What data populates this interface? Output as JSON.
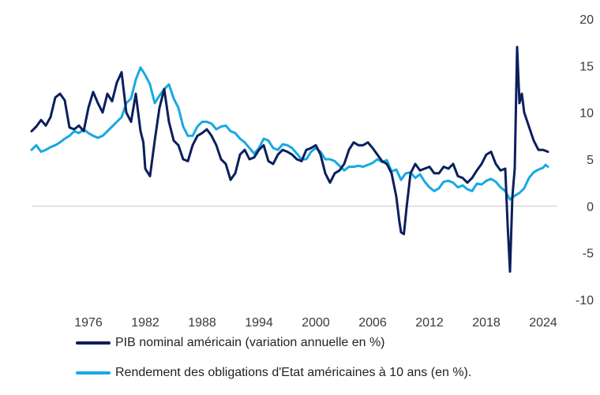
{
  "chart_data": {
    "type": "line",
    "xlim": [
      1970,
      2025.5
    ],
    "ylim": [
      -10,
      20
    ],
    "x_ticks": [
      1976,
      1982,
      1988,
      1994,
      2000,
      2006,
      2012,
      2018,
      2024
    ],
    "y_ticks": [
      20,
      15,
      10,
      5,
      0,
      -5,
      -10
    ],
    "zero_line": true,
    "series": [
      {
        "name": "PIB nominal américain (variation annuelle en %)",
        "color": "#0b1f5c",
        "points": [
          [
            1970.0,
            8.0
          ],
          [
            1970.5,
            8.5
          ],
          [
            1971.0,
            9.2
          ],
          [
            1971.5,
            8.6
          ],
          [
            1972.0,
            9.5
          ],
          [
            1972.5,
            11.6
          ],
          [
            1973.0,
            12.0
          ],
          [
            1973.5,
            11.3
          ],
          [
            1974.0,
            8.4
          ],
          [
            1974.5,
            8.2
          ],
          [
            1975.0,
            8.6
          ],
          [
            1975.5,
            8.0
          ],
          [
            1976.0,
            10.5
          ],
          [
            1976.5,
            12.2
          ],
          [
            1977.0,
            11.0
          ],
          [
            1977.5,
            10.0
          ],
          [
            1978.0,
            12.0
          ],
          [
            1978.5,
            11.2
          ],
          [
            1979.0,
            13.2
          ],
          [
            1979.5,
            14.3
          ],
          [
            1980.0,
            10.0
          ],
          [
            1980.5,
            9.0
          ],
          [
            1981.0,
            12.0
          ],
          [
            1981.5,
            8.0
          ],
          [
            1981.8,
            6.8
          ],
          [
            1982.0,
            4.0
          ],
          [
            1982.5,
            3.2
          ],
          [
            1983.0,
            7.0
          ],
          [
            1983.5,
            10.5
          ],
          [
            1984.0,
            12.5
          ],
          [
            1984.5,
            9.0
          ],
          [
            1985.0,
            7.0
          ],
          [
            1985.5,
            6.5
          ],
          [
            1986.0,
            5.0
          ],
          [
            1986.5,
            4.8
          ],
          [
            1987.0,
            6.5
          ],
          [
            1987.5,
            7.5
          ],
          [
            1988.0,
            7.8
          ],
          [
            1988.5,
            8.2
          ],
          [
            1989.0,
            7.5
          ],
          [
            1989.5,
            6.5
          ],
          [
            1990.0,
            5.0
          ],
          [
            1990.5,
            4.5
          ],
          [
            1991.0,
            2.8
          ],
          [
            1991.5,
            3.5
          ],
          [
            1992.0,
            5.5
          ],
          [
            1992.5,
            6.0
          ],
          [
            1993.0,
            5.0
          ],
          [
            1993.5,
            5.2
          ],
          [
            1994.0,
            6.0
          ],
          [
            1994.5,
            6.5
          ],
          [
            1995.0,
            4.8
          ],
          [
            1995.5,
            4.5
          ],
          [
            1996.0,
            5.5
          ],
          [
            1996.5,
            6.0
          ],
          [
            1997.0,
            5.8
          ],
          [
            1997.5,
            5.5
          ],
          [
            1998.0,
            5.0
          ],
          [
            1998.5,
            4.8
          ],
          [
            1999.0,
            6.0
          ],
          [
            1999.5,
            6.2
          ],
          [
            2000.0,
            6.5
          ],
          [
            2000.5,
            5.5
          ],
          [
            2001.0,
            3.5
          ],
          [
            2001.5,
            2.5
          ],
          [
            2002.0,
            3.5
          ],
          [
            2002.5,
            3.8
          ],
          [
            2003.0,
            4.5
          ],
          [
            2003.5,
            6.0
          ],
          [
            2004.0,
            6.8
          ],
          [
            2004.5,
            6.5
          ],
          [
            2005.0,
            6.5
          ],
          [
            2005.5,
            6.8
          ],
          [
            2006.0,
            6.2
          ],
          [
            2006.5,
            5.5
          ],
          [
            2007.0,
            4.8
          ],
          [
            2007.5,
            4.5
          ],
          [
            2008.0,
            3.5
          ],
          [
            2008.5,
            1.0
          ],
          [
            2008.8,
            -1.5
          ],
          [
            2009.0,
            -2.8
          ],
          [
            2009.3,
            -3.0
          ],
          [
            2009.6,
            0.0
          ],
          [
            2010.0,
            3.5
          ],
          [
            2010.5,
            4.5
          ],
          [
            2011.0,
            3.8
          ],
          [
            2011.5,
            4.0
          ],
          [
            2012.0,
            4.2
          ],
          [
            2012.5,
            3.5
          ],
          [
            2013.0,
            3.5
          ],
          [
            2013.5,
            4.2
          ],
          [
            2014.0,
            4.0
          ],
          [
            2014.5,
            4.5
          ],
          [
            2015.0,
            3.2
          ],
          [
            2015.5,
            3.0
          ],
          [
            2016.0,
            2.5
          ],
          [
            2016.5,
            3.0
          ],
          [
            2017.0,
            3.8
          ],
          [
            2017.5,
            4.5
          ],
          [
            2018.0,
            5.5
          ],
          [
            2018.5,
            5.8
          ],
          [
            2019.0,
            4.5
          ],
          [
            2019.5,
            3.8
          ],
          [
            2020.0,
            4.0
          ],
          [
            2020.25,
            -2.0
          ],
          [
            2020.5,
            -7.0
          ],
          [
            2020.75,
            1.0
          ],
          [
            2021.0,
            4.0
          ],
          [
            2021.25,
            17.0
          ],
          [
            2021.5,
            11.0
          ],
          [
            2021.75,
            12.0
          ],
          [
            2022.0,
            10.0
          ],
          [
            2022.5,
            8.5
          ],
          [
            2023.0,
            7.0
          ],
          [
            2023.5,
            6.0
          ],
          [
            2024.0,
            6.0
          ],
          [
            2024.5,
            5.8
          ]
        ]
      },
      {
        "name": "Rendement des obligations d'Etat américaines à 10 ans (en %).",
        "color": "#16a9e4",
        "points": [
          [
            1970.0,
            6.0
          ],
          [
            1970.5,
            6.5
          ],
          [
            1971.0,
            5.8
          ],
          [
            1971.5,
            6.0
          ],
          [
            1972.0,
            6.3
          ],
          [
            1972.5,
            6.5
          ],
          [
            1973.0,
            6.8
          ],
          [
            1973.5,
            7.2
          ],
          [
            1974.0,
            7.5
          ],
          [
            1974.5,
            8.0
          ],
          [
            1975.0,
            7.8
          ],
          [
            1975.5,
            8.2
          ],
          [
            1976.0,
            7.8
          ],
          [
            1976.5,
            7.5
          ],
          [
            1977.0,
            7.3
          ],
          [
            1977.5,
            7.5
          ],
          [
            1978.0,
            8.0
          ],
          [
            1978.5,
            8.5
          ],
          [
            1979.0,
            9.0
          ],
          [
            1979.5,
            9.5
          ],
          [
            1980.0,
            11.0
          ],
          [
            1980.5,
            11.5
          ],
          [
            1981.0,
            13.5
          ],
          [
            1981.5,
            14.8
          ],
          [
            1982.0,
            14.0
          ],
          [
            1982.5,
            13.0
          ],
          [
            1983.0,
            11.0
          ],
          [
            1983.5,
            11.8
          ],
          [
            1984.0,
            12.5
          ],
          [
            1984.5,
            13.0
          ],
          [
            1985.0,
            11.5
          ],
          [
            1985.5,
            10.5
          ],
          [
            1986.0,
            8.5
          ],
          [
            1986.5,
            7.5
          ],
          [
            1987.0,
            7.5
          ],
          [
            1987.5,
            8.5
          ],
          [
            1988.0,
            9.0
          ],
          [
            1988.5,
            9.0
          ],
          [
            1989.0,
            8.8
          ],
          [
            1989.5,
            8.2
          ],
          [
            1990.0,
            8.5
          ],
          [
            1990.5,
            8.6
          ],
          [
            1991.0,
            8.0
          ],
          [
            1991.5,
            7.8
          ],
          [
            1992.0,
            7.2
          ],
          [
            1992.5,
            6.8
          ],
          [
            1993.0,
            6.2
          ],
          [
            1993.5,
            5.6
          ],
          [
            1994.0,
            6.2
          ],
          [
            1994.5,
            7.2
          ],
          [
            1995.0,
            7.0
          ],
          [
            1995.5,
            6.2
          ],
          [
            1996.0,
            6.0
          ],
          [
            1996.5,
            6.6
          ],
          [
            1997.0,
            6.5
          ],
          [
            1997.5,
            6.2
          ],
          [
            1998.0,
            5.6
          ],
          [
            1998.5,
            5.0
          ],
          [
            1999.0,
            5.0
          ],
          [
            1999.5,
            5.8
          ],
          [
            2000.0,
            6.2
          ],
          [
            2000.5,
            5.8
          ],
          [
            2001.0,
            5.0
          ],
          [
            2001.5,
            5.0
          ],
          [
            2002.0,
            4.8
          ],
          [
            2002.5,
            4.3
          ],
          [
            2003.0,
            3.8
          ],
          [
            2003.5,
            4.2
          ],
          [
            2004.0,
            4.2
          ],
          [
            2004.5,
            4.3
          ],
          [
            2005.0,
            4.2
          ],
          [
            2005.5,
            4.4
          ],
          [
            2006.0,
            4.6
          ],
          [
            2006.5,
            5.0
          ],
          [
            2007.0,
            4.7
          ],
          [
            2007.5,
            4.9
          ],
          [
            2008.0,
            3.7
          ],
          [
            2008.5,
            3.9
          ],
          [
            2009.0,
            2.8
          ],
          [
            2009.5,
            3.5
          ],
          [
            2010.0,
            3.6
          ],
          [
            2010.5,
            3.0
          ],
          [
            2011.0,
            3.4
          ],
          [
            2011.5,
            2.6
          ],
          [
            2012.0,
            2.0
          ],
          [
            2012.5,
            1.6
          ],
          [
            2013.0,
            1.9
          ],
          [
            2013.5,
            2.6
          ],
          [
            2014.0,
            2.7
          ],
          [
            2014.5,
            2.5
          ],
          [
            2015.0,
            2.0
          ],
          [
            2015.5,
            2.2
          ],
          [
            2016.0,
            1.8
          ],
          [
            2016.5,
            1.6
          ],
          [
            2017.0,
            2.4
          ],
          [
            2017.5,
            2.3
          ],
          [
            2018.0,
            2.7
          ],
          [
            2018.5,
            2.9
          ],
          [
            2019.0,
            2.6
          ],
          [
            2019.5,
            2.0
          ],
          [
            2020.0,
            1.6
          ],
          [
            2020.5,
            0.7
          ],
          [
            2021.0,
            1.1
          ],
          [
            2021.5,
            1.4
          ],
          [
            2022.0,
            1.9
          ],
          [
            2022.5,
            3.0
          ],
          [
            2023.0,
            3.6
          ],
          [
            2023.5,
            3.9
          ],
          [
            2024.0,
            4.1
          ],
          [
            2024.25,
            4.4
          ],
          [
            2024.5,
            4.2
          ]
        ]
      }
    ]
  }
}
